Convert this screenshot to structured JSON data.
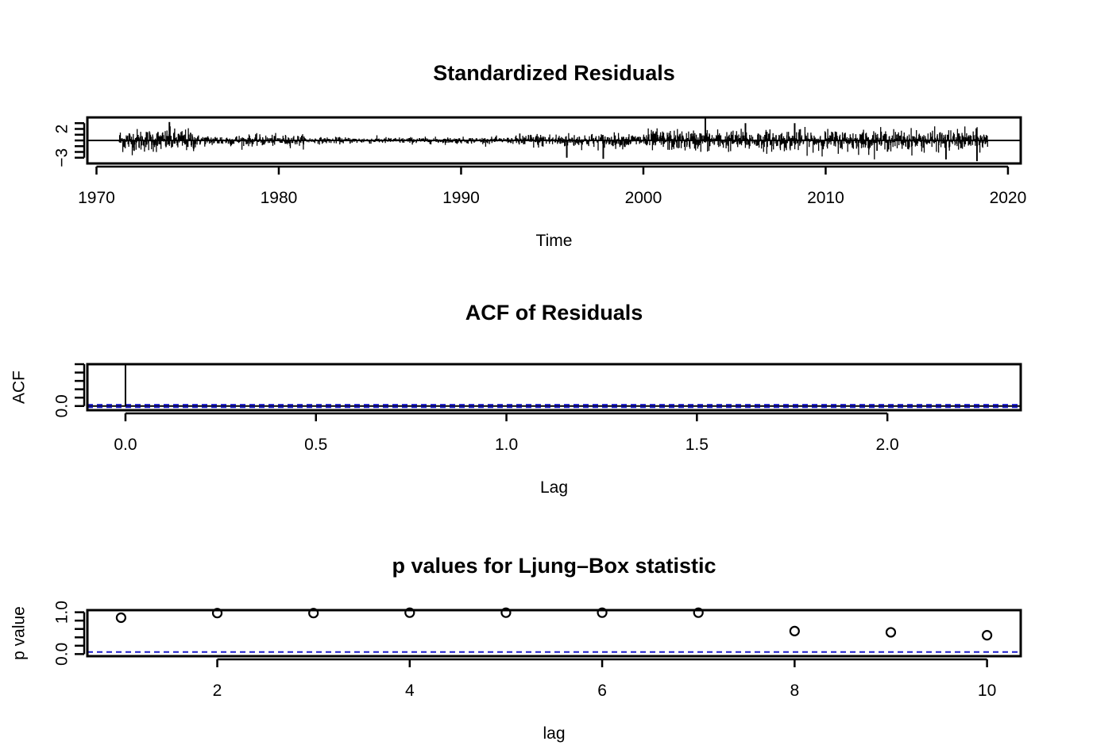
{
  "chart_data": [
    {
      "type": "bar",
      "subtype": "time-series-residuals",
      "title": "Standardized Residuals",
      "xlabel": "Time",
      "ylabel": "",
      "xlim": [
        1969.5,
        2020.7
      ],
      "ylim": [
        -4.0,
        4.0
      ],
      "x_ticks": [
        1970,
        1980,
        1990,
        2000,
        2010,
        2020
      ],
      "x_tick_labels": [
        "1970",
        "1980",
        "1990",
        "2000",
        "2010",
        "2020"
      ],
      "y_ticks": [
        -3,
        2
      ],
      "y_tick_labels": [
        "−3",
        "2"
      ],
      "y_minor_ticks": [
        -3,
        -2,
        -1,
        0,
        1,
        2,
        3
      ],
      "hline": 0,
      "start": 1971.25,
      "end": 2018.9,
      "frequency": 52,
      "spikes": [
        {
          "x": 1997.8,
          "y": -3.2
        },
        {
          "x": 2003.4,
          "y": 3.9
        },
        {
          "x": 2016.6,
          "y": -3.3
        },
        {
          "x": 2018.3,
          "y": -3.6
        },
        {
          "x": 1995.8,
          "y": -3.0
        },
        {
          "x": 1974.0,
          "y": 3.2
        },
        {
          "x": 2005.6,
          "y": 3.0
        },
        {
          "x": 2008.3,
          "y": 3.0
        }
      ]
    },
    {
      "type": "bar",
      "subtype": "acf",
      "title": "ACF of Residuals",
      "xlabel": "Lag",
      "ylabel": "ACF",
      "xlim": [
        -0.1,
        2.35
      ],
      "ylim": [
        -0.1,
        1.0
      ],
      "x_ticks": [
        0.0,
        0.5,
        1.0,
        1.5,
        2.0
      ],
      "x_tick_labels": [
        "0.0",
        "0.5",
        "1.0",
        "1.5",
        "2.0"
      ],
      "y_ticks": [
        0.0
      ],
      "y_tick_labels": [
        "0.0"
      ],
      "y_minor_ticks": [
        0.0,
        0.2,
        0.4,
        0.6,
        0.8,
        1.0
      ],
      "ci": [
        0.03,
        -0.03
      ],
      "lag0_value": 1.0
    },
    {
      "type": "scatter",
      "title": "p values for Ljung–Box statistic",
      "xlabel": "lag",
      "ylabel": "p value",
      "xlim": [
        0.65,
        10.35
      ],
      "ylim": [
        -0.05,
        1.05
      ],
      "x": [
        1,
        2,
        3,
        4,
        5,
        6,
        7,
        8,
        9,
        10
      ],
      "y": [
        0.87,
        0.98,
        0.98,
        0.99,
        0.99,
        0.99,
        0.99,
        0.55,
        0.52,
        0.45
      ],
      "x_ticks": [
        2,
        4,
        6,
        8,
        10
      ],
      "x_tick_labels": [
        "2",
        "4",
        "6",
        "8",
        "10"
      ],
      "y_ticks": [
        0.0,
        1.0
      ],
      "y_tick_labels": [
        "0.0",
        "1.0"
      ],
      "y_minor_ticks": [
        0.0,
        0.2,
        0.4,
        0.6,
        0.8,
        1.0
      ],
      "ci": [
        0.05
      ]
    }
  ]
}
